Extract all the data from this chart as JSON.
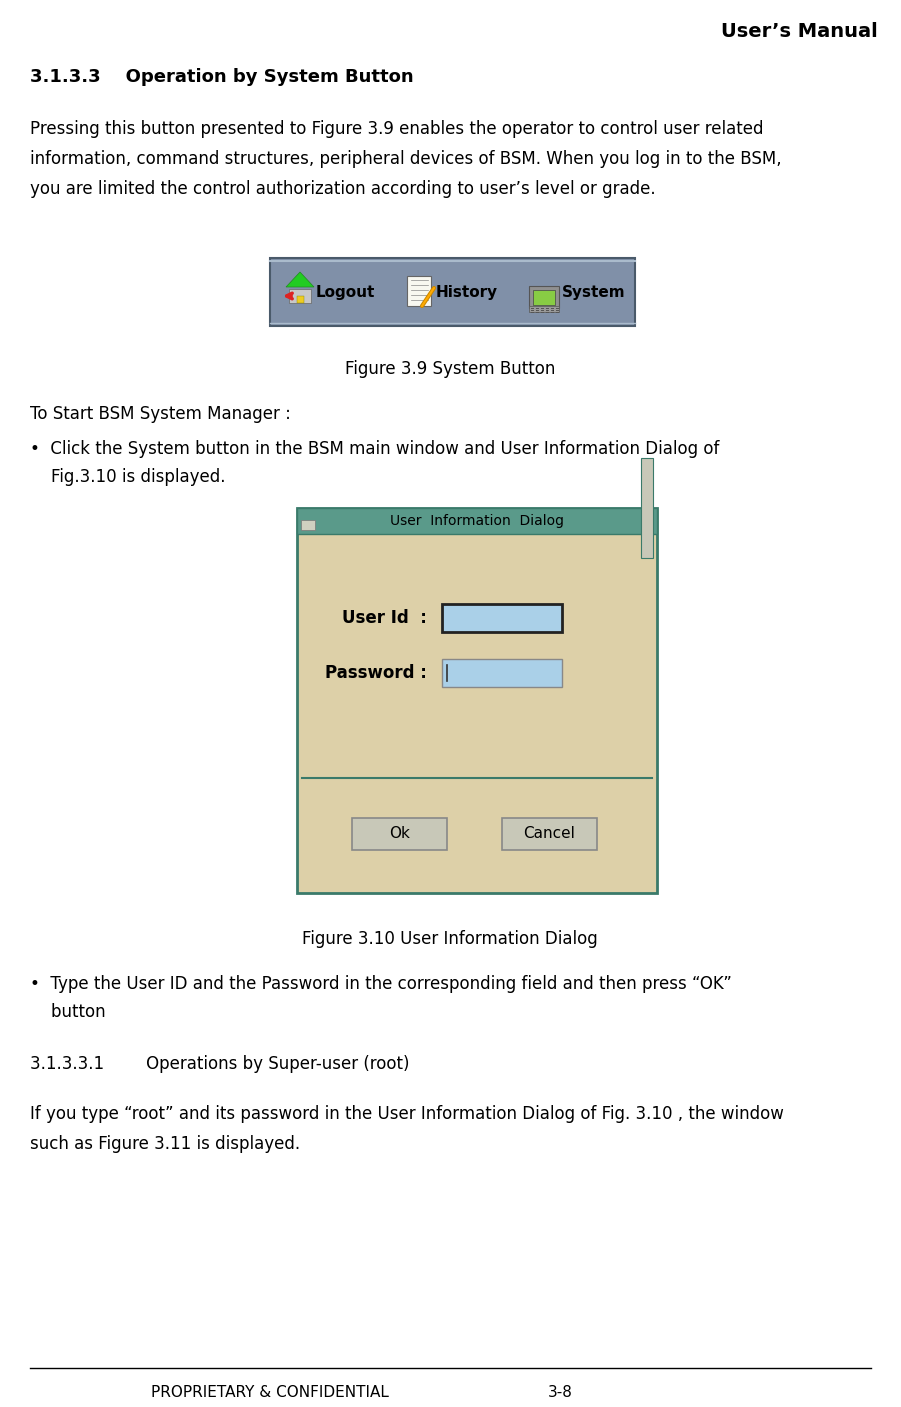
{
  "title_right": "User’s Manual",
  "section_header": "3.1.3.3    Operation by System Button",
  "body_text_1_lines": [
    "Pressing this button presented to Figure 3.9 enables the operator to control user related",
    "information, command structures, peripheral devices of BSM. When you log in to the BSM,",
    "you are limited the control authorization according to user’s level or grade."
  ],
  "figure_39_caption": "Figure 3.9 System Button",
  "to_start_header": "To Start BSM System Manager :",
  "bullet_1_lines": [
    "•  Click the System button in the BSM main window and User Information Dialog of",
    "    Fig.3.10 is displayed."
  ],
  "figure_310_caption": "Figure 3.10 User Information Dialog",
  "bullet_2_lines": [
    "•  Type the User ID and the Password in the corresponding field and then press “OK”",
    "    button"
  ],
  "subsection_header": "3.1.3.3.1        Operations by Super-user (root)",
  "body_text_2_lines": [
    "If you type “root” and its password in the User Information Dialog of Fig. 3.10 , the window",
    "such as Figure 3.11 is displayed."
  ],
  "footer_left": "PROPRIETARY & CONFIDENTIAL",
  "footer_right": "3-8",
  "bg_color": "#ffffff",
  "text_color": "#000000",
  "toolbar_bg": "#8090a8",
  "toolbar_border": "#4a5a6a",
  "toolbar_top_border": "#aabbcc",
  "dialog_bg": "#ddd0a8",
  "dialog_border": "#3a7a6a",
  "dialog_title_bg": "#5a9a8a",
  "button_bg": "#c8c8b8",
  "button_border": "#888888",
  "input_bg": "#aad0e8",
  "input_border_dark": "#222222",
  "input_border_light": "#888888"
}
